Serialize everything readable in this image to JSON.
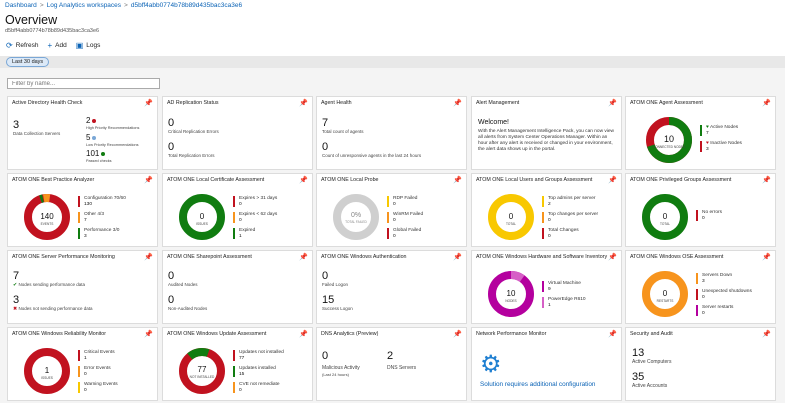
{
  "breadcrumb": [
    "Dashboard",
    "Log Analytics workspaces",
    "d5bff4abb0774b78b89d435bac3ca3e6"
  ],
  "page": {
    "title": "Overview",
    "subtitle": "d5bff4abb0774b78b89d435bac3ca3e6"
  },
  "toolbar": {
    "refresh": "Refresh",
    "add": "Add",
    "logs": "Logs"
  },
  "time_range": "Last 30 days",
  "filter_placeholder": "Filter by name...",
  "colors": {
    "red": "#c1121f",
    "green": "#107c10",
    "yellow": "#f8c800",
    "orange": "#f7941d",
    "magenta": "#b4009e",
    "gray": "#cfcfcf",
    "blue": "#1f7fd1"
  },
  "tiles": {
    "ad_health": {
      "title": "Active Directory Health Check",
      "big": "3",
      "big_label": "Data Collection Servers",
      "a_val": "2",
      "a_label": "High Priority Recommendations",
      "b_val": "5",
      "b_label": "Low Priority Recommendations",
      "c_val": "101",
      "c_label": "Passed checks"
    },
    "ad_repl": {
      "title": "AD Replication Status",
      "a_val": "0",
      "a_label": "Critical Replication Errors",
      "b_val": "0",
      "b_label": "Total Replication Errors"
    },
    "agent_health": {
      "title": "Agent Health",
      "a_val": "7",
      "a_label": "Total count of agents",
      "b_val": "0",
      "b_label": "Count of unresponsive agents in the last 24 hours"
    },
    "alert_mgmt": {
      "title": "Alert Management",
      "welcome": "Welcome!",
      "text": "With the Alert Management Intelligence Pack, you can now view all alerts from System Center Operations Manager. Within an hour after any alert is received or changed in your environment, the alert data shows up in the portal."
    },
    "agent_assess": {
      "title": "ATOM ONE Agent Assessment",
      "center_num": "10",
      "center_lbl": "CONNECTED NODES",
      "legend": [
        {
          "label": "Active Nodes",
          "value": "7"
        },
        {
          "label": "Inactive Nodes",
          "value": "3"
        }
      ],
      "chart": [
        7,
        3
      ]
    },
    "best_practice": {
      "title": "ATOM ONE Best Practice Analyzer",
      "center_num": "140",
      "center_lbl": "EVENTS",
      "legend": [
        {
          "label": "Configuration 70/60",
          "value": "130"
        },
        {
          "label": "Other 4/3",
          "value": "7"
        },
        {
          "label": "Performance 3/0",
          "value": "3"
        }
      ],
      "chart": [
        130,
        7,
        3
      ]
    },
    "local_cert": {
      "title": "ATOM ONE Local Certificate Assessment",
      "center_num": "0",
      "center_lbl": "ISSUES",
      "legend": [
        {
          "label": "Expires > 31 days",
          "value": "0"
        },
        {
          "label": "Expires < 62 days",
          "value": "0"
        },
        {
          "label": "Expired",
          "value": "1"
        }
      ]
    },
    "local_probe": {
      "title": "ATOM ONE Local Probe",
      "center_num": "0%",
      "center_lbl": "TOTAL FAILED",
      "legend": [
        {
          "label": "RDP Failed",
          "value": "0"
        },
        {
          "label": "WinRM Failed",
          "value": "0"
        },
        {
          "label": "Global Failed",
          "value": "0"
        }
      ]
    },
    "local_users": {
      "title": "ATOM ONE Local Users and Groups Assessment",
      "center_num": "0",
      "center_lbl": "TOTAL",
      "legend": [
        {
          "label": "Top admins per server",
          "value": "2"
        },
        {
          "label": "Top changes per server",
          "value": "0"
        },
        {
          "label": "Total Changes",
          "value": "0"
        }
      ]
    },
    "priv_groups": {
      "title": "ATOM ONE Privileged Groups Assessment",
      "center_num": "0",
      "center_lbl": "TOTAL",
      "legend": [
        {
          "label": "No errors",
          "value": "0"
        }
      ]
    },
    "server_perf": {
      "title": "ATOM ONE Server Performance Monitoring",
      "a_val": "7",
      "a_label": "Nodes sending performance data",
      "b_val": "3",
      "b_label": "Nodes not sending performance data"
    },
    "sharepoint": {
      "title": "ATOM ONE Sharepoint Assessment",
      "a_val": "0",
      "a_label": "Audited Nodes",
      "b_val": "0",
      "b_label": "Non-Audited Nodes"
    },
    "win_auth": {
      "title": "ATOM ONE Windows Authentication",
      "a_val": "0",
      "a_label": "Failed Logon",
      "b_val": "15",
      "b_label": "Success Logon"
    },
    "hw_sw": {
      "title": "ATOM ONE Windows Hardware and Software Inventory",
      "center_num": "10",
      "center_lbl": "NODES",
      "legend": [
        {
          "label": "Virtual Machine",
          "value": "9"
        },
        {
          "label": "PowerEdge R610",
          "value": "1"
        }
      ],
      "chart": [
        9,
        1
      ]
    },
    "os_assess": {
      "title": "ATOM ONE Windows OSE Assessment",
      "center_num": "0",
      "center_lbl": "RESTARTS",
      "legend": [
        {
          "label": "Servers Down",
          "value": "3"
        },
        {
          "label": "Unexpected shutdowns",
          "value": "0"
        },
        {
          "label": "Server restarts",
          "value": "0"
        }
      ]
    },
    "reliability": {
      "title": "ATOM ONE Windows Reliability Monitor",
      "center_num": "1",
      "center_lbl": "ISSUES",
      "legend": [
        {
          "label": "Critical Events",
          "value": "1"
        },
        {
          "label": "Error Events",
          "value": "0"
        },
        {
          "label": "Warning Events",
          "value": "0"
        }
      ]
    },
    "win_update": {
      "title": "ATOM ONE Windows Update Assessment",
      "center_num": "77",
      "center_lbl": "NOT INSTALLED",
      "legend": [
        {
          "label": "Updates not installed",
          "value": "77"
        },
        {
          "label": "Updates installed",
          "value": "15"
        },
        {
          "label": "CVE not remediate",
          "value": "0"
        }
      ],
      "chart": [
        77,
        15
      ]
    },
    "dns": {
      "title": "DNS Analytics (Preview)",
      "a_val": "0",
      "a_label": "Malicious Activity",
      "a_sub": "(Last 24 hours)",
      "b_val": "2",
      "b_label": "DNS Servers"
    },
    "npm": {
      "title": "Network Performance Monitor",
      "link": "Solution requires additional configuration"
    },
    "security": {
      "title": "Security and Audit",
      "a_val": "13",
      "a_label": "Active Computers",
      "b_val": "35",
      "b_label": "Active Accounts"
    }
  }
}
